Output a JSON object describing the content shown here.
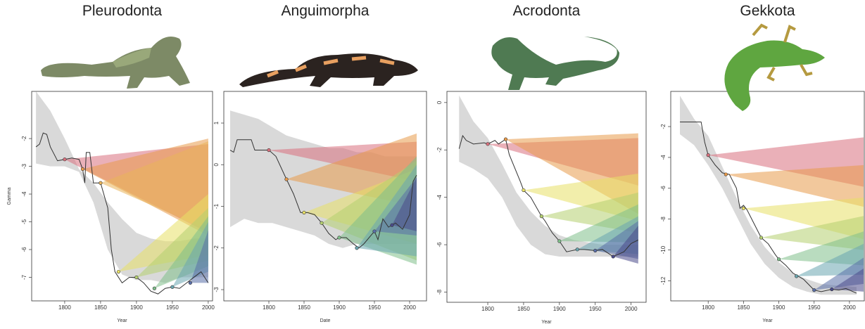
{
  "chart_data": [
    {
      "type": "line",
      "title": "Pleurodonta",
      "xlabel": "Year",
      "ylabel": "Gamma",
      "xlim": [
        1754,
        2006
      ],
      "ylim": [
        -7.85,
        -0.3
      ],
      "xticks": [
        1800,
        1850,
        1900,
        1950,
        2000
      ],
      "yticks": [
        -2,
        -3,
        -4,
        -5,
        -6,
        -7
      ],
      "x": [
        1760,
        1765,
        1770,
        1775,
        1780,
        1790,
        1800,
        1810,
        1820,
        1825,
        1828,
        1830,
        1835,
        1840,
        1850,
        1860,
        1865,
        1870,
        1880,
        1890,
        1900,
        1910,
        1920,
        1930,
        1940,
        1950,
        1960,
        1970,
        1980,
        1990,
        2000
      ],
      "series": [
        {
          "name": "Gamma",
          "color": "#333333",
          "values": [
            -2.3,
            -2.2,
            -1.8,
            -1.85,
            -2.3,
            -2.8,
            -2.75,
            -2.7,
            -2.75,
            -3.1,
            -3.6,
            -2.5,
            -2.5,
            -3.6,
            -3.6,
            -4.5,
            -6.0,
            -6.8,
            -7.2,
            -7.0,
            -7.0,
            -7.2,
            -7.5,
            -7.6,
            -7.4,
            -7.35,
            -7.4,
            -7.2,
            -7.0,
            -6.8,
            -7.2
          ]
        }
      ],
      "band": {
        "color": "#d9d9d9",
        "x": [
          1760,
          1780,
          1800,
          1820,
          1840,
          1860,
          1880,
          1900,
          1920,
          1940,
          1960,
          1980,
          2000
        ],
        "upper": [
          -0.3,
          -1.0,
          -2.0,
          -3.1,
          -3.6,
          -4.3,
          -4.9,
          -5.4,
          -5.6,
          -5.7,
          -5.7,
          -5.6,
          -5.6
        ],
        "lower": [
          -2.9,
          -3.0,
          -3.0,
          -3.2,
          -4.3,
          -6.0,
          -6.9,
          -7.1,
          -7.1,
          -7.2,
          -7.0,
          -7.0,
          -7.0
        ]
      },
      "wedge_end": 2000,
      "wedges": [
        {
          "x": 1800,
          "y": -2.75,
          "end": [
            -5.4,
            -2.2
          ],
          "color": "#d9707d"
        },
        {
          "x": 1825,
          "y": -3.1,
          "end": [
            -5.5,
            -2.0
          ],
          "color": "#e89a4a"
        },
        {
          "x": 1850,
          "y": -3.6,
          "end": [
            -5.3,
            -2.1
          ],
          "color": "#eab55a"
        },
        {
          "x": 1875,
          "y": -6.8,
          "end": [
            -6.2,
            -4.0
          ],
          "color": "#e8e066"
        },
        {
          "x": 1900,
          "y": -7.0,
          "end": [
            -6.4,
            -4.5
          ],
          "color": "#b5d070"
        },
        {
          "x": 1925,
          "y": -7.4,
          "end": [
            -6.6,
            -4.8
          ],
          "color": "#7fbf8a"
        },
        {
          "x": 1950,
          "y": -7.35,
          "end": [
            -6.8,
            -5.0
          ],
          "color": "#6aa6b0"
        },
        {
          "x": 1975,
          "y": -7.2,
          "end": [
            -7.2,
            -5.3
          ],
          "color": "#5a6fa8"
        }
      ]
    },
    {
      "type": "line",
      "title": "Anguimorpha",
      "xlabel": "Date",
      "xlim": [
        1736,
        2024
      ],
      "ylim": [
        -3.27,
        1.76
      ],
      "xticks": [
        1800,
        1850,
        1900,
        1950,
        2000
      ],
      "yticks": [
        1,
        0,
        -1,
        -2,
        -3
      ],
      "x": [
        1745,
        1750,
        1755,
        1765,
        1775,
        1780,
        1800,
        1810,
        1825,
        1835,
        1845,
        1855,
        1865,
        1875,
        1885,
        1895,
        1900,
        1910,
        1920,
        1928,
        1935,
        1945,
        1950,
        1955,
        1962,
        1970,
        1980,
        1990,
        2000,
        2005,
        2010
      ],
      "series": [
        {
          "name": "Gamma",
          "color": "#333333",
          "values": [
            0.35,
            0.3,
            0.6,
            0.6,
            0.6,
            0.35,
            0.35,
            0.2,
            -0.35,
            -0.7,
            -1.15,
            -1.15,
            -1.2,
            -1.4,
            -1.65,
            -1.8,
            -1.75,
            -1.75,
            -1.9,
            -2.0,
            -1.9,
            -1.7,
            -1.6,
            -1.8,
            -1.3,
            -1.5,
            -1.4,
            -1.55,
            -1.2,
            -0.4,
            -0.25
          ]
        }
      ],
      "band": {
        "color": "#d9d9d9",
        "x": [
          1745,
          1765,
          1785,
          1805,
          1825,
          1845,
          1865,
          1885,
          1905,
          1925,
          1945,
          1965,
          2010
        ],
        "upper": [
          1.3,
          1.2,
          1.1,
          0.9,
          0.7,
          0.6,
          0.5,
          0.4,
          0.4,
          0.3,
          0.3,
          0.2,
          0.2
        ],
        "lower": [
          -1.5,
          -1.3,
          -1.4,
          -1.4,
          -1.5,
          -1.6,
          -1.7,
          -1.9,
          -2.0,
          -1.9,
          -1.9,
          -1.9,
          -1.9
        ]
      },
      "wedge_end": 2010,
      "wedges": [
        {
          "x": 1800,
          "y": 0.35,
          "end": [
            -0.4,
            0.55
          ],
          "color": "#d9707d"
        },
        {
          "x": 1825,
          "y": -0.35,
          "end": [
            -1.0,
            0.75
          ],
          "color": "#e89a4a"
        },
        {
          "x": 1850,
          "y": -1.15,
          "end": [
            -1.9,
            -0.1
          ],
          "color": "#e8e066"
        },
        {
          "x": 1875,
          "y": -1.4,
          "end": [
            -2.3,
            0.1
          ],
          "color": "#b5d070"
        },
        {
          "x": 1900,
          "y": -1.75,
          "end": [
            -2.4,
            0.2
          ],
          "color": "#7fbf8a"
        },
        {
          "x": 1925,
          "y": -2.0,
          "end": [
            -2.2,
            0.0
          ],
          "color": "#6aa6b0"
        },
        {
          "x": 1950,
          "y": -1.6,
          "end": [
            -1.7,
            -0.3
          ],
          "color": "#5a6fa8"
        },
        {
          "x": 1975,
          "y": -1.45,
          "end": [
            -1.6,
            -0.3
          ],
          "color": "#4a4a8a"
        }
      ]
    },
    {
      "type": "line",
      "title": "Acrodonta",
      "xlabel": "Year",
      "xlim": [
        1743,
        2021
      ],
      "ylim": [
        -8.43,
        0.47
      ],
      "xticks": [
        1800,
        1850,
        1900,
        1950,
        2000
      ],
      "yticks": [
        0,
        -2,
        -4,
        -6,
        -8
      ],
      "x": [
        1760,
        1765,
        1770,
        1780,
        1795,
        1800,
        1810,
        1815,
        1825,
        1830,
        1845,
        1850,
        1860,
        1875,
        1880,
        1890,
        1900,
        1910,
        1925,
        1935,
        1950,
        1960,
        1975,
        1990,
        2000,
        2010
      ],
      "series": [
        {
          "name": "Gamma",
          "color": "#333333",
          "values": [
            -1.95,
            -1.4,
            -1.6,
            -1.75,
            -1.7,
            -1.75,
            -1.6,
            -1.75,
            -1.55,
            -2.2,
            -3.3,
            -3.7,
            -4.0,
            -4.8,
            -5.0,
            -5.5,
            -5.85,
            -6.3,
            -6.2,
            -6.2,
            -6.25,
            -6.2,
            -6.5,
            -6.3,
            -5.95,
            -5.8
          ]
        }
      ],
      "band": {
        "color": "#d9d9d9",
        "x": [
          1760,
          1780,
          1800,
          1820,
          1840,
          1860,
          1880,
          1900,
          1920,
          1940,
          1960,
          1980,
          2010
        ],
        "upper": [
          0.3,
          -0.8,
          -1.5,
          -2.6,
          -3.8,
          -4.6,
          -5.2,
          -5.6,
          -5.8,
          -5.9,
          -6.0,
          -6.0,
          -6.0
        ],
        "lower": [
          -2.5,
          -2.8,
          -3.2,
          -4.0,
          -5.2,
          -6.0,
          -6.4,
          -6.5,
          -6.5,
          -6.5,
          -6.5,
          -6.5,
          -6.5
        ]
      },
      "wedge_end": 2010,
      "wedges": [
        {
          "x": 1800,
          "y": -1.75,
          "end": [
            -3.5,
            -1.5
          ],
          "color": "#d9707d"
        },
        {
          "x": 1825,
          "y": -1.55,
          "end": [
            -4.7,
            -1.3
          ],
          "color": "#e89a4a"
        },
        {
          "x": 1850,
          "y": -3.7,
          "end": [
            -5.0,
            -3.0
          ],
          "color": "#e8e066"
        },
        {
          "x": 1875,
          "y": -4.8,
          "end": [
            -5.5,
            -3.8
          ],
          "color": "#b5d070"
        },
        {
          "x": 1900,
          "y": -5.85,
          "end": [
            -5.9,
            -4.3
          ],
          "color": "#7fbf8a"
        },
        {
          "x": 1925,
          "y": -6.2,
          "end": [
            -6.4,
            -4.8
          ],
          "color": "#6aa6b0"
        },
        {
          "x": 1950,
          "y": -6.25,
          "end": [
            -6.6,
            -5.0
          ],
          "color": "#5a6fa8"
        },
        {
          "x": 1975,
          "y": -6.5,
          "end": [
            -6.8,
            -5.2
          ],
          "color": "#4a4a8a"
        }
      ]
    },
    {
      "type": "line",
      "title": "Gekkota",
      "xlabel": "Year",
      "xlim": [
        1747,
        2021
      ],
      "ylim": [
        -13.3,
        0.28
      ],
      "xticks": [
        1800,
        1850,
        1900,
        1950,
        2000
      ],
      "yticks": [
        -2,
        -4,
        -6,
        -8,
        -10,
        -12
      ],
      "x": [
        1760,
        1790,
        1795,
        1800,
        1810,
        1820,
        1830,
        1840,
        1845,
        1850,
        1855,
        1865,
        1875,
        1885,
        1895,
        1900,
        1910,
        1920,
        1935,
        1950,
        1960,
        1975,
        1985,
        1995,
        2010
      ],
      "series": [
        {
          "name": "Gamma",
          "color": "#333333",
          "values": [
            -1.7,
            -1.7,
            -3.0,
            -3.85,
            -4.5,
            -5.0,
            -5.1,
            -6.0,
            -7.3,
            -7.1,
            -7.4,
            -8.3,
            -9.2,
            -9.6,
            -10.3,
            -10.6,
            -11.0,
            -11.5,
            -11.9,
            -12.6,
            -12.7,
            -12.55,
            -12.6,
            -12.5,
            -12.8
          ]
        }
      ],
      "band": {
        "color": "#d9d9d9",
        "x": [
          1760,
          1780,
          1800,
          1820,
          1840,
          1860,
          1880,
          1900,
          1920,
          1940,
          1960,
          1980,
          2010
        ],
        "upper": [
          0,
          -1.5,
          -2.6,
          -4.6,
          -6.6,
          -8.4,
          -9.8,
          -10.8,
          -11.5,
          -11.9,
          -12.2,
          -12.3,
          -12.4
        ],
        "lower": [
          -2.5,
          -3.2,
          -4.5,
          -6.0,
          -7.8,
          -9.6,
          -10.9,
          -11.8,
          -12.4,
          -12.7,
          -12.9,
          -12.9,
          -12.9
        ]
      },
      "wedge_end": 2020,
      "wedges": [
        {
          "x": 1800,
          "y": -3.85,
          "end": [
            -5.9,
            -2.7
          ],
          "color": "#d9707d"
        },
        {
          "x": 1825,
          "y": -5.1,
          "end": [
            -7.2,
            -4.5
          ],
          "color": "#e89a4a"
        },
        {
          "x": 1850,
          "y": -7.3,
          "end": [
            -9.3,
            -6.6
          ],
          "color": "#e8e066"
        },
        {
          "x": 1875,
          "y": -9.2,
          "end": [
            -10.0,
            -7.8
          ],
          "color": "#b5d070"
        },
        {
          "x": 1900,
          "y": -10.6,
          "end": [
            -11.0,
            -8.8
          ],
          "color": "#7fbf8a"
        },
        {
          "x": 1925,
          "y": -11.7,
          "end": [
            -11.6,
            -9.6
          ],
          "color": "#6aa6b0"
        },
        {
          "x": 1950,
          "y": -12.6,
          "end": [
            -12.2,
            -10.5
          ],
          "color": "#5a6fa8"
        },
        {
          "x": 1975,
          "y": -12.55,
          "end": [
            -12.7,
            -11.2
          ],
          "color": "#4a4a8a"
        }
      ]
    }
  ]
}
